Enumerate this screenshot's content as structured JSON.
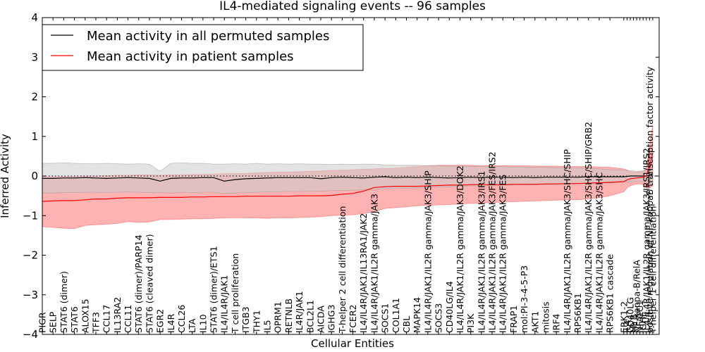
{
  "chart_data": {
    "type": "line",
    "title": "IL4-mediated signaling events -- 96 samples",
    "xlabel": "Cellular Entities",
    "ylabel": "Inferred Activity",
    "ylim": [
      -4,
      4
    ],
    "yticks": [
      -4,
      -3,
      -2,
      -1,
      0,
      1,
      2,
      3,
      4
    ],
    "grid": false,
    "reference_line": 0,
    "legend": {
      "position": "top-left"
    },
    "series": [
      {
        "name": "Mean activity in all permuted samples",
        "color": "#000000",
        "band_color": "#cccccc",
        "band_opacity": 0.55
      },
      {
        "name": "Mean activity in patient samples",
        "color": "#ff0000",
        "band_color": "#ff5555",
        "band_opacity": 0.45
      }
    ],
    "tick_positions": [
      0,
      1,
      2,
      3,
      4,
      5,
      6,
      7,
      8,
      9,
      10,
      11,
      12,
      13,
      14,
      15,
      16,
      17,
      18,
      19,
      20,
      21,
      22,
      23,
      24,
      25,
      26,
      27,
      28,
      29,
      30,
      31,
      32,
      33,
      34,
      35,
      36,
      37,
      38,
      39,
      40,
      41,
      42,
      43,
      44,
      45,
      46,
      47,
      48,
      49,
      50,
      51,
      52,
      53,
      54.3,
      54.6,
      54.9,
      55.2,
      55.5,
      55.8,
      56.1,
      56.4,
      56.7,
      57.0
    ],
    "categories": [
      "PIGR",
      "SELP",
      "STAT6 (dimer)",
      "STAT6",
      "ALOX15",
      "TFF3",
      "CCL17",
      "IL13RA2",
      "CCL11",
      "STAT6 (dimer)/PARP14",
      "STAT6 (cleaved dimer)",
      "EGR2",
      "IL4R",
      "CCL26",
      "LTA",
      "IL10",
      "STAT6 (dimer)/ETS1",
      "IL4/IL4R/JAK1",
      "T cell proliferation",
      "ITGB3",
      "THY1",
      "IL5",
      "OPRM1",
      "RETNLB",
      "IL4R/JAK1",
      "BCL2L1",
      "AICDA",
      "IGHG3",
      "T-helper 2 cell differentiation",
      "FCER2",
      "IL4/IL4R/JAK1/IL13RA1/JAK2",
      "IL4/IL4R/JAK1/IL2R gamma/JAK3",
      "SOCS1",
      "COL1A1",
      "CBL",
      "MAPK14",
      "IL4/IL4R/JAK1/IL2R gamma/JAK3/SHIP",
      "SOCS3",
      "CD40LG/IL4",
      "IL4/IL4R/JAK1/IL2R gamma/JAK3/DOK2",
      "PI3K",
      "IL4/IL4R/JAK1/IL2R gamma/JAK3/IRS1",
      "IL4/IL4R/JAK1/IL2R gamma/JAK3/FES/IRS2",
      "IL4/IL4R/JAK1/IL2R gamma/JAK3/FES",
      "FRAP1",
      "mol:PI-3-4-5-P3",
      "AKT1",
      "mitosis",
      "IRF4",
      "IL4/IL4R/JAK1/IL2R gamma/JAK3/SHC/SHIP",
      "RPS6KB1",
      "IL4/IL4R/JAK1/IL2R gamma/JAK3/SHC/SHIP/GRB2",
      "IL4/IL4R/JAK1/IL2R gamma/JAK3/SHC",
      "RPS6KB1 cascade",
      "ERK1-2",
      "IL4",
      "CD40LG",
      "MYB",
      "NF-kappa-B/RelA",
      "NFATC1",
      "IGHE",
      "IL4/IL4R/JAK1/IL2R gamma/JAK3/IRS1/IRS2",
      "positive regulation of NF-kappaB transcription factor activity",
      "T-helper 1 cell differentiation"
    ],
    "perm_mean": [
      -0.06,
      -0.06,
      -0.05,
      -0.05,
      -0.04,
      -0.05,
      -0.06,
      -0.05,
      -0.04,
      -0.05,
      -0.06,
      -0.13,
      -0.06,
      -0.05,
      -0.05,
      -0.04,
      -0.04,
      -0.13,
      -0.09,
      -0.07,
      -0.06,
      -0.05,
      -0.04,
      -0.04,
      -0.04,
      -0.04,
      -0.07,
      -0.04,
      -0.03,
      -0.04,
      -0.05,
      -0.03,
      -0.02,
      -0.04,
      -0.03,
      -0.04,
      -0.03,
      -0.04,
      -0.05,
      -0.04,
      -0.03,
      -0.04,
      -0.03,
      -0.03,
      -0.04,
      -0.03,
      -0.04,
      -0.03,
      -0.03,
      -0.03,
      -0.03,
      -0.02,
      -0.02,
      -0.02,
      -0.02,
      -0.01,
      0.0,
      0.0,
      0.0,
      0.0,
      0.0,
      0.0,
      0.02,
      0.06
    ],
    "perm_upper": [
      0.32,
      0.32,
      0.33,
      0.32,
      0.31,
      0.31,
      0.32,
      0.31,
      0.3,
      0.31,
      0.3,
      0.12,
      0.32,
      0.33,
      0.32,
      0.32,
      0.3,
      0.3,
      0.31,
      0.3,
      0.32,
      0.3,
      0.31,
      0.3,
      0.31,
      0.3,
      0.3,
      0.29,
      0.3,
      0.29,
      0.3,
      0.3,
      0.28,
      0.27,
      0.27,
      0.27,
      0.26,
      0.26,
      0.25,
      0.25,
      0.24,
      0.24,
      0.24,
      0.24,
      0.23,
      0.23,
      0.22,
      0.22,
      0.21,
      0.21,
      0.2,
      0.2,
      0.18,
      0.16,
      0.15,
      0.14,
      0.13,
      0.13,
      0.12,
      0.12,
      0.13,
      0.14,
      0.14,
      0.15
    ],
    "perm_lower": [
      -0.43,
      -0.43,
      -0.42,
      -0.42,
      -0.41,
      -0.41,
      -0.42,
      -0.41,
      -0.4,
      -0.41,
      -0.42,
      -0.42,
      -0.43,
      -0.42,
      -0.42,
      -0.41,
      -0.41,
      -0.44,
      -0.43,
      -0.42,
      -0.41,
      -0.4,
      -0.4,
      -0.39,
      -0.39,
      -0.38,
      -0.38,
      -0.37,
      -0.36,
      -0.36,
      -0.35,
      -0.34,
      -0.32,
      -0.32,
      -0.31,
      -0.3,
      -0.29,
      -0.28,
      -0.27,
      -0.26,
      -0.25,
      -0.25,
      -0.24,
      -0.23,
      -0.23,
      -0.22,
      -0.22,
      -0.21,
      -0.2,
      -0.2,
      -0.19,
      -0.19,
      -0.18,
      -0.17,
      -0.16,
      -0.15,
      -0.14,
      -0.14,
      -0.14,
      -0.14,
      -0.15,
      -0.16,
      -0.18,
      -0.22
    ],
    "patient_mean": [
      -0.64,
      -0.63,
      -0.62,
      -0.62,
      -0.6,
      -0.58,
      -0.58,
      -0.56,
      -0.55,
      -0.55,
      -0.55,
      -0.54,
      -0.54,
      -0.54,
      -0.53,
      -0.53,
      -0.52,
      -0.52,
      -0.52,
      -0.51,
      -0.51,
      -0.51,
      -0.51,
      -0.51,
      -0.5,
      -0.5,
      -0.5,
      -0.49,
      -0.46,
      -0.44,
      -0.38,
      -0.29,
      -0.27,
      -0.26,
      -0.26,
      -0.26,
      -0.25,
      -0.24,
      -0.23,
      -0.23,
      -0.22,
      -0.22,
      -0.22,
      -0.22,
      -0.21,
      -0.21,
      -0.21,
      -0.2,
      -0.2,
      -0.19,
      -0.19,
      -0.18,
      -0.17,
      -0.16,
      -0.14,
      -0.1,
      -0.07,
      -0.06,
      -0.05,
      -0.04,
      -0.03,
      0.0,
      0.25,
      0.58
    ],
    "patient_upper": [
      -0.02,
      -0.02,
      -0.01,
      -0.01,
      0.0,
      0.0,
      0.01,
      0.02,
      0.02,
      0.03,
      0.03,
      0.02,
      0.03,
      0.03,
      0.04,
      0.04,
      0.05,
      0.06,
      0.06,
      0.07,
      0.08,
      0.09,
      0.1,
      0.1,
      0.11,
      0.12,
      0.13,
      0.14,
      0.15,
      0.16,
      0.17,
      0.18,
      0.19,
      0.2,
      0.22,
      0.24,
      0.26,
      0.27,
      0.27,
      0.27,
      0.27,
      0.26,
      0.26,
      0.26,
      0.26,
      0.26,
      0.25,
      0.25,
      0.25,
      0.24,
      0.24,
      0.24,
      0.23,
      0.22,
      0.18,
      0.15,
      0.12,
      0.1,
      0.1,
      0.11,
      0.12,
      0.2,
      0.8,
      1.28
    ],
    "patient_lower": [
      -1.28,
      -1.3,
      -1.32,
      -1.33,
      -1.25,
      -1.23,
      -1.22,
      -1.2,
      -1.15,
      -1.17,
      -1.16,
      -1.1,
      -1.1,
      -1.09,
      -1.08,
      -1.08,
      -1.07,
      -1.06,
      -1.05,
      -1.06,
      -1.06,
      -1.07,
      -1.06,
      -1.06,
      -1.05,
      -1.04,
      -1.03,
      -1.0,
      -0.99,
      -0.98,
      -0.95,
      -0.9,
      -0.82,
      -0.8,
      -0.78,
      -0.75,
      -0.74,
      -0.73,
      -0.72,
      -0.71,
      -0.69,
      -0.68,
      -0.67,
      -0.66,
      -0.65,
      -0.64,
      -0.63,
      -0.62,
      -0.61,
      -0.6,
      -0.6,
      -0.58,
      -0.55,
      -0.5,
      -0.4,
      -0.3,
      -0.25,
      -0.22,
      -0.2,
      -0.2,
      -0.22,
      -0.3,
      -0.3,
      -0.25
    ]
  }
}
